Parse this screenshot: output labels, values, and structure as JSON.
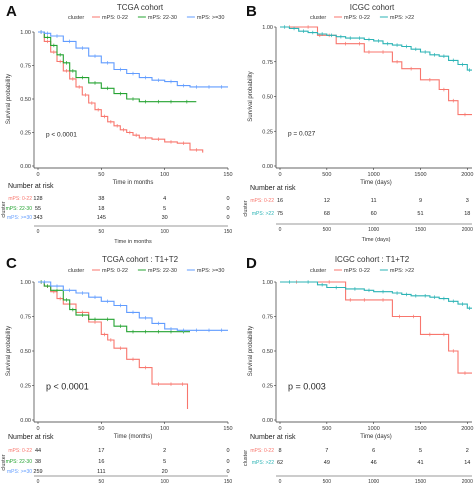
{
  "colors": {
    "low": "#F8766D",
    "mid": "#24A331",
    "high": "#619CFF",
    "icgc_high": "#2BB3B5",
    "axis": "#333333"
  },
  "chart_data": [
    {
      "panel": "A",
      "type": "line",
      "title": "TCGA cohort",
      "legend_title": "cluster",
      "legend": [
        "mPS: 0-22",
        "mPS: 22-30",
        "mPS: >=30"
      ],
      "xlabel": "Time in months",
      "ylabel": "Survival probability",
      "xlim": [
        0,
        150
      ],
      "ylim": [
        0,
        1
      ],
      "xticks": [
        "0",
        "50",
        "100",
        "150"
      ],
      "yticks": [
        "0.00",
        "0.25",
        "0.50",
        "0.75",
        "1.00"
      ],
      "annotation": "p < 0.0001",
      "risk": {
        "title": "Number at risk",
        "ylabel": "cluster",
        "xlabel": "Time in months",
        "rows": [
          {
            "label": "mPS: 0-22",
            "values": [
              "128",
              "38",
              "4",
              "0"
            ]
          },
          {
            "label": "mPS: 22-30",
            "values": [
              "55",
              "18",
              "5",
              "0"
            ]
          },
          {
            "label": "mPS: >=30",
            "values": [
              "343",
              "145",
              "30",
              "0"
            ]
          }
        ]
      },
      "series": [
        {
          "name": "mPS: 0-22",
          "color": "low",
          "x": [
            0,
            5,
            10,
            15,
            20,
            25,
            30,
            35,
            40,
            45,
            50,
            55,
            60,
            65,
            70,
            75,
            80,
            90,
            100,
            110,
            120,
            130
          ],
          "y": [
            1.0,
            0.93,
            0.85,
            0.78,
            0.71,
            0.65,
            0.59,
            0.53,
            0.47,
            0.42,
            0.37,
            0.33,
            0.3,
            0.27,
            0.25,
            0.23,
            0.21,
            0.2,
            0.18,
            0.17,
            0.12,
            0.1
          ]
        },
        {
          "name": "mPS: 22-30",
          "color": "mid",
          "x": [
            0,
            5,
            10,
            15,
            20,
            25,
            30,
            40,
            50,
            60,
            70,
            80,
            90,
            100,
            110,
            125
          ],
          "y": [
            1.0,
            0.96,
            0.9,
            0.83,
            0.77,
            0.71,
            0.66,
            0.62,
            0.58,
            0.54,
            0.5,
            0.48,
            0.48,
            0.48,
            0.48,
            0.48
          ]
        },
        {
          "name": "mPS: >=30",
          "color": "high",
          "x": [
            0,
            5,
            10,
            20,
            30,
            40,
            50,
            60,
            70,
            80,
            90,
            100,
            110,
            120,
            130,
            140,
            150
          ],
          "y": [
            1.0,
            0.99,
            0.97,
            0.93,
            0.88,
            0.82,
            0.77,
            0.72,
            0.69,
            0.66,
            0.64,
            0.63,
            0.6,
            0.59,
            0.59,
            0.59,
            0.59
          ]
        }
      ]
    },
    {
      "panel": "B",
      "type": "line",
      "title": "ICGC cohort",
      "legend_title": "cluster",
      "legend": [
        "mPS: 0-22",
        "mPS: >22"
      ],
      "xlabel": "Time (days)",
      "ylabel": "Survival probability",
      "xlim": [
        0,
        2050
      ],
      "ylim": [
        0,
        1
      ],
      "xticks": [
        "0",
        "500",
        "1000",
        "1500",
        "2000"
      ],
      "yticks": [
        "0.00",
        "0.25",
        "0.50",
        "0.75",
        "1.00"
      ],
      "annotation": "p = 0.027",
      "risk": {
        "title": "Number at risk",
        "ylabel": "cluster",
        "xlabel": "Time (days)",
        "rows": [
          {
            "label": "mPS: 0-22",
            "values": [
              "16",
              "12",
              "11",
              "9",
              "3"
            ]
          },
          {
            "label": "mPS: >22",
            "values": [
              "75",
              "68",
              "60",
              "51",
              "18"
            ]
          }
        ]
      },
      "series": [
        {
          "name": "mPS: 0-22",
          "color": "low",
          "x": [
            0,
            200,
            400,
            450,
            600,
            800,
            900,
            1000,
            1200,
            1300,
            1500,
            1700,
            1800,
            1900,
            2050
          ],
          "y": [
            1.0,
            1.0,
            0.94,
            0.94,
            0.88,
            0.88,
            0.82,
            0.82,
            0.75,
            0.7,
            0.62,
            0.55,
            0.47,
            0.37,
            0.37
          ]
        },
        {
          "name": "mPS: >22",
          "color": "icgc_high",
          "x": [
            0,
            100,
            200,
            300,
            400,
            500,
            600,
            700,
            800,
            900,
            1000,
            1100,
            1200,
            1300,
            1400,
            1500,
            1600,
            1700,
            1800,
            1900,
            2000,
            2050
          ],
          "y": [
            1.0,
            0.99,
            0.97,
            0.96,
            0.95,
            0.94,
            0.93,
            0.92,
            0.92,
            0.91,
            0.9,
            0.88,
            0.87,
            0.86,
            0.84,
            0.82,
            0.8,
            0.79,
            0.76,
            0.73,
            0.69,
            0.69
          ]
        }
      ]
    },
    {
      "panel": "C",
      "type": "line",
      "title": "TCGA cohort : T1+T2",
      "legend_title": "cluster",
      "legend": [
        "mPS: 0-22",
        "mPS: 22-30",
        "mPS: >=30"
      ],
      "xlabel": "Time (months)",
      "ylabel": "Survival probability",
      "xlim": [
        0,
        150
      ],
      "ylim": [
        0,
        1
      ],
      "xticks": [
        "0",
        "50",
        "100",
        "150"
      ],
      "yticks": [
        "0.00",
        "0.25",
        "0.50",
        "0.75",
        "1.00"
      ],
      "annotation": "p < 0.0001",
      "risk": {
        "title": "Number at risk",
        "ylabel": "cluster",
        "xlabel": "Time (months)",
        "rows": [
          {
            "label": "mPS: 0-22",
            "values": [
              "44",
              "17",
              "2",
              "0"
            ]
          },
          {
            "label": "mPS: 22-30",
            "values": [
              "38",
              "16",
              "5",
              "0"
            ]
          },
          {
            "label": "mPS: >=30",
            "values": [
              "259",
              "111",
              "20",
              "0"
            ]
          }
        ]
      },
      "series": [
        {
          "name": "mPS: 0-22",
          "color": "low",
          "x": [
            0,
            5,
            10,
            15,
            20,
            30,
            40,
            50,
            55,
            60,
            70,
            80,
            90,
            100,
            110,
            118
          ],
          "y": [
            1.0,
            0.97,
            0.93,
            0.88,
            0.84,
            0.78,
            0.71,
            0.62,
            0.58,
            0.52,
            0.44,
            0.38,
            0.26,
            0.26,
            0.26,
            0.08
          ]
        },
        {
          "name": "mPS: 22-30",
          "color": "mid",
          "x": [
            0,
            5,
            10,
            20,
            25,
            30,
            40,
            50,
            60,
            70,
            80,
            90,
            100,
            110,
            120
          ],
          "y": [
            1.0,
            0.97,
            0.94,
            0.87,
            0.8,
            0.76,
            0.73,
            0.73,
            0.68,
            0.64,
            0.64,
            0.64,
            0.64,
            0.64,
            0.64
          ]
        },
        {
          "name": "mPS: >=30",
          "color": "high",
          "x": [
            0,
            10,
            20,
            30,
            40,
            50,
            60,
            70,
            80,
            90,
            100,
            110,
            120,
            130,
            140,
            150
          ],
          "y": [
            1.0,
            0.97,
            0.94,
            0.92,
            0.89,
            0.86,
            0.83,
            0.78,
            0.74,
            0.7,
            0.66,
            0.65,
            0.65,
            0.65,
            0.65,
            0.65
          ]
        }
      ]
    },
    {
      "panel": "D",
      "type": "line",
      "title": "ICGC cohort : T1+T2",
      "legend_title": "cluster",
      "legend": [
        "mPS: 0-22",
        "mPS: >22"
      ],
      "xlabel": "Time (days)",
      "ylabel": "Survival probability",
      "xlim": [
        0,
        2050
      ],
      "ylim": [
        0,
        1
      ],
      "xticks": [
        "0",
        "500",
        "1000",
        "1500",
        "2000"
      ],
      "yticks": [
        "0.00",
        "0.25",
        "0.50",
        "0.75",
        "1.00"
      ],
      "annotation": "p = 0.003",
      "risk": {
        "title": "Number at risk",
        "ylabel": "cluster",
        "xlabel": "Time (days)",
        "rows": [
          {
            "label": "mPS: 0-22",
            "values": [
              "8",
              "7",
              "6",
              "5",
              "2"
            ]
          },
          {
            "label": "mPS: >22",
            "values": [
              "62",
              "49",
              "46",
              "41",
              "14"
            ]
          }
        ]
      },
      "series": [
        {
          "name": "mPS: 0-22",
          "color": "low",
          "x": [
            0,
            350,
            700,
            800,
            1000,
            1200,
            1350,
            1500,
            1700,
            1800,
            1900,
            2050
          ],
          "y": [
            1.0,
            1.0,
            0.87,
            0.87,
            0.87,
            0.75,
            0.75,
            0.62,
            0.62,
            0.5,
            0.34,
            0.34
          ]
        },
        {
          "name": "mPS: >22",
          "color": "icgc_high",
          "x": [
            0,
            200,
            400,
            500,
            700,
            900,
            1000,
            1200,
            1300,
            1400,
            1500,
            1600,
            1700,
            1800,
            1900,
            2000,
            2050
          ],
          "y": [
            1.0,
            1.0,
            0.98,
            0.96,
            0.95,
            0.94,
            0.93,
            0.92,
            0.91,
            0.9,
            0.9,
            0.89,
            0.88,
            0.86,
            0.84,
            0.81,
            0.81
          ]
        }
      ]
    }
  ]
}
